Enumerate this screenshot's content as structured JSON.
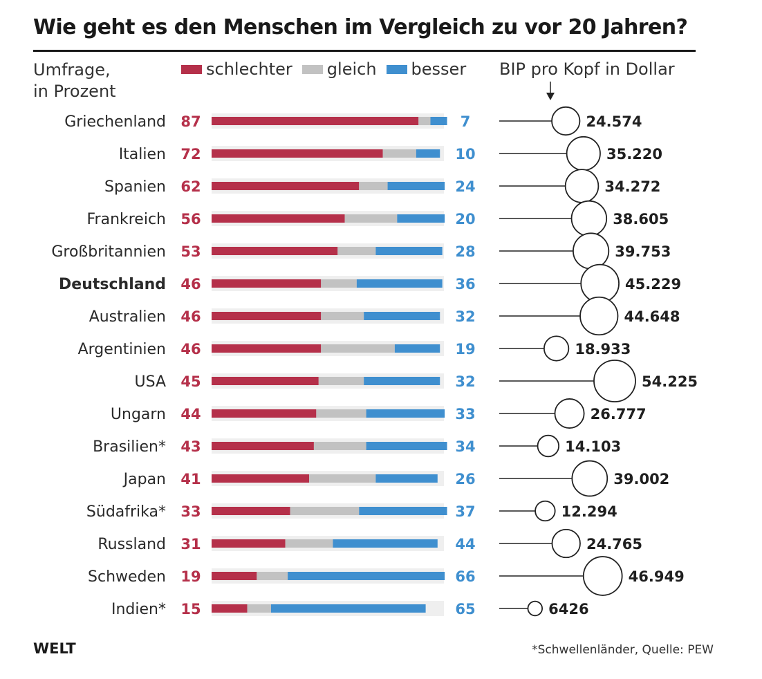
{
  "title": "Wie geht es den Menschen im Vergleich zu vor 20 Jahren?",
  "subtitle_line1": "Umfrage,",
  "subtitle_line2": "in Prozent",
  "bip_header": "BIP pro Kopf in Dollar",
  "logo": "WELT",
  "footnote": "*Schwellenländer, Quelle: PEW",
  "colors": {
    "schlechter": "#b5304a",
    "gleich": "#c2c2c2",
    "besser": "#3f8fcf",
    "track": "#efefef"
  },
  "chart_data": {
    "type": "bar",
    "stacked": true,
    "orientation": "horizontal",
    "legend": [
      "schlechter",
      "gleich",
      "besser"
    ],
    "legend_placement": "top",
    "categories": [
      "Griechenland",
      "Italien",
      "Spanien",
      "Frankreich",
      "Großbritannien",
      "Deutschland",
      "Australien",
      "Argentinien",
      "USA",
      "Ungarn",
      "Brasilien*",
      "Japan",
      "Südafrika*",
      "Russland",
      "Schweden",
      "Indien*"
    ],
    "highlight": "Deutschland",
    "series": [
      {
        "name": "schlechter",
        "values": [
          87,
          72,
          62,
          56,
          53,
          46,
          46,
          46,
          45,
          44,
          43,
          41,
          33,
          31,
          19,
          15
        ]
      },
      {
        "name": "gleich",
        "values": [
          5,
          14,
          12,
          22,
          16,
          15,
          18,
          31,
          19,
          21,
          22,
          28,
          29,
          20,
          13,
          10
        ]
      },
      {
        "name": "besser",
        "values": [
          7,
          10,
          24,
          20,
          28,
          36,
          32,
          19,
          32,
          33,
          34,
          26,
          37,
          44,
          66,
          65
        ]
      }
    ],
    "xlim": [
      0,
      100
    ],
    "bip": {
      "values": [
        24574,
        35220,
        34272,
        38605,
        39753,
        45229,
        44648,
        18933,
        54225,
        26777,
        14103,
        39002,
        12294,
        24765,
        46949,
        6426
      ],
      "labels": [
        "24.574",
        "35.220",
        "34.272",
        "38.605",
        "39.753",
        "45.229",
        "44.648",
        "18.933",
        "54.225",
        "26.777",
        "14.103",
        "39.002",
        "12.294",
        "24.765",
        "46.949",
        "6426"
      ]
    }
  }
}
